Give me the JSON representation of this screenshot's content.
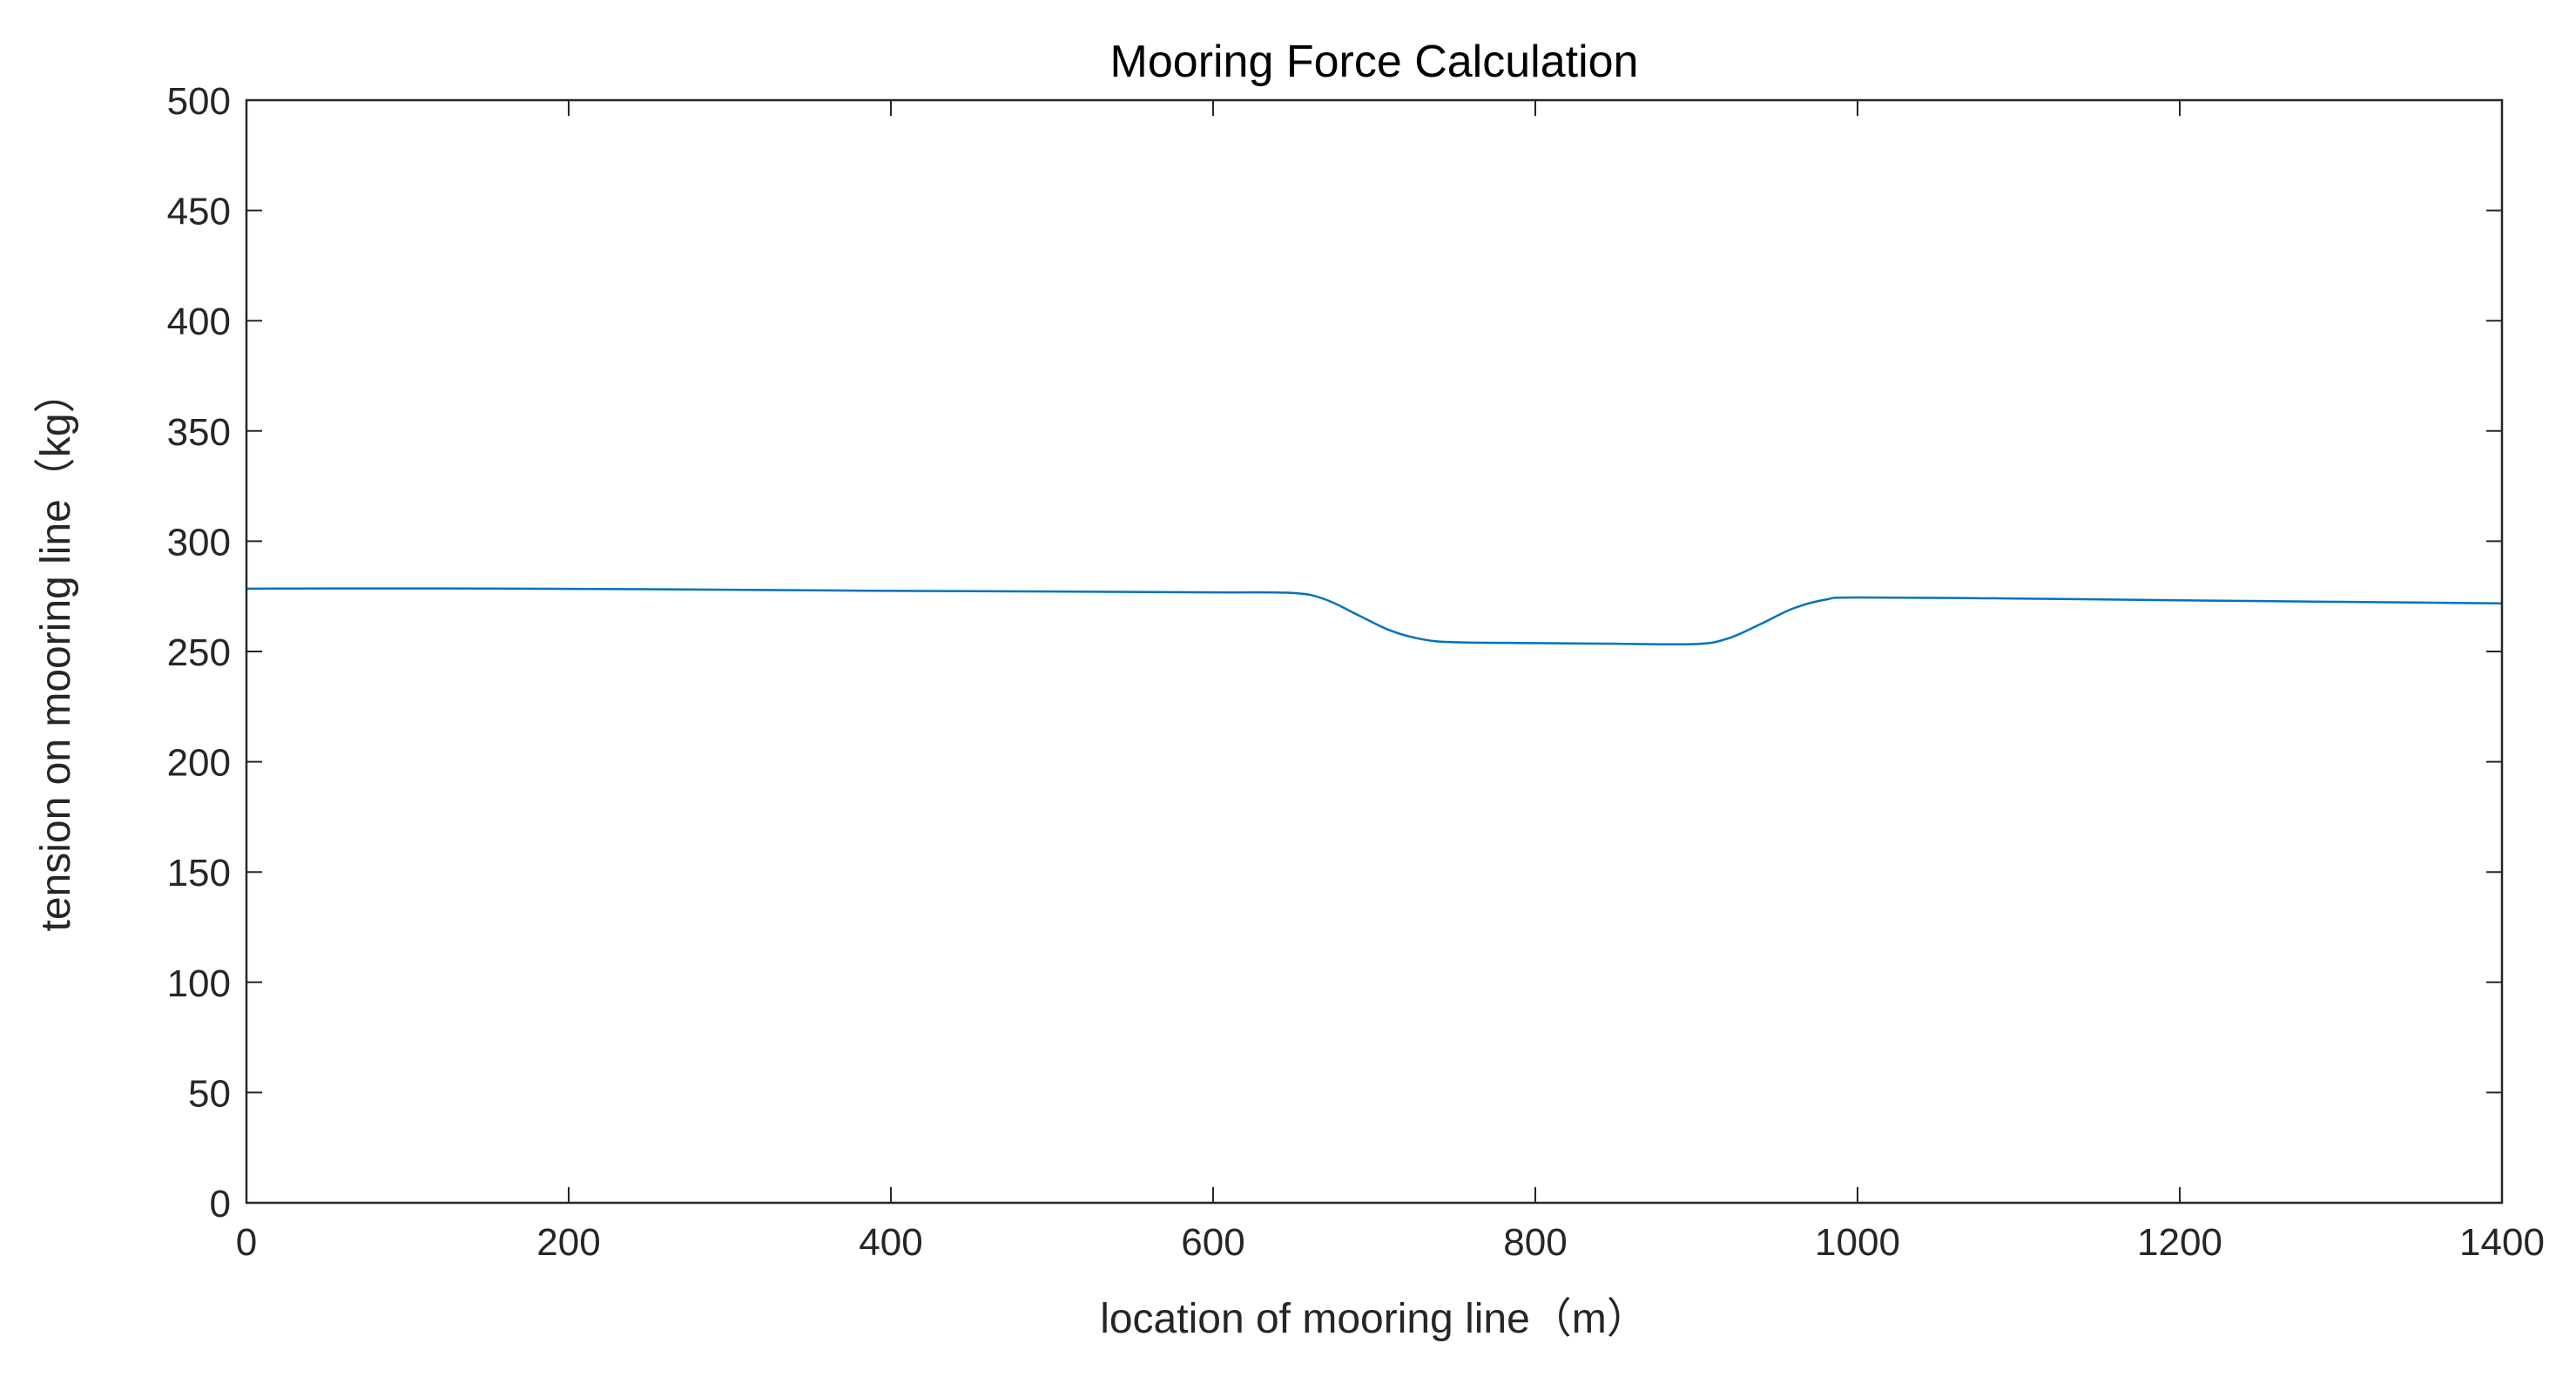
{
  "chart_data": {
    "type": "line",
    "title": "Mooring Force Calculation",
    "xlabel": "location of mooring line（m）",
    "ylabel": "tension on mooring line（kg）",
    "xlim": [
      0,
      1400
    ],
    "ylim": [
      0,
      500
    ],
    "xticks": [
      0,
      200,
      400,
      600,
      800,
      1000,
      1200,
      1400
    ],
    "yticks": [
      0,
      50,
      100,
      150,
      200,
      250,
      300,
      350,
      400,
      450,
      500
    ],
    "grid": false,
    "line_color": "#0072BD",
    "series": [
      {
        "name": "tension",
        "x": [
          0,
          100,
          200,
          300,
          400,
          500,
          600,
          650,
          670,
          690,
          710,
          730,
          750,
          800,
          850,
          900,
          920,
          940,
          960,
          980,
          1000,
          1100,
          1200,
          1300,
          1400
        ],
        "y": [
          278.5,
          278.6,
          278.4,
          278.0,
          277.5,
          277.2,
          276.8,
          276.5,
          273.5,
          266.5,
          259.5,
          255.5,
          254.2,
          253.8,
          253.5,
          253.4,
          256.0,
          262.5,
          269.5,
          273.5,
          274.5,
          274.0,
          273.2,
          272.5,
          271.8
        ]
      }
    ]
  }
}
